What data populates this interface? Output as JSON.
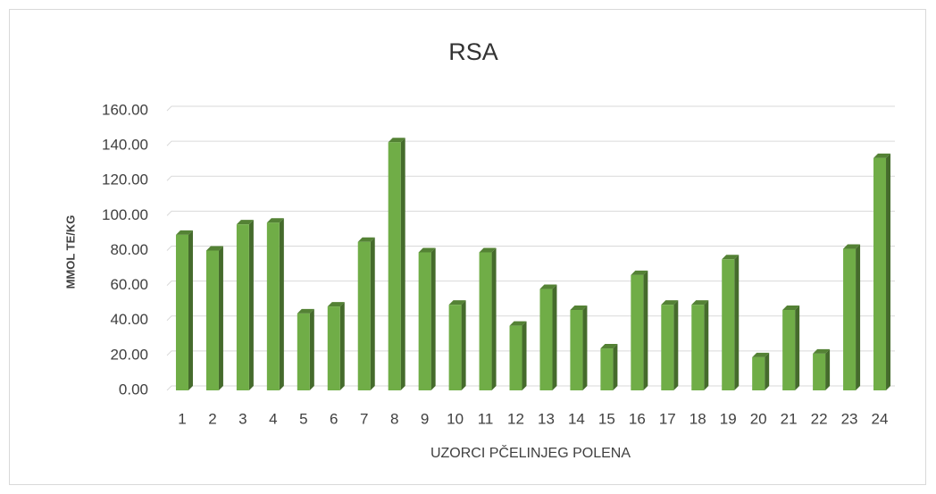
{
  "chart_data": {
    "type": "bar",
    "title": "RSA",
    "y_label": "MMOL TE/KG",
    "x_label": "UZORCI PČELINJEG POLENA",
    "categories": [
      "1",
      "2",
      "3",
      "4",
      "5",
      "6",
      "7",
      "8",
      "9",
      "10",
      "11",
      "12",
      "13",
      "14",
      "15",
      "16",
      "17",
      "18",
      "19",
      "20",
      "21",
      "22",
      "23",
      "24"
    ],
    "values": [
      89,
      80,
      95,
      96,
      44,
      48,
      85,
      142,
      79,
      49,
      79,
      37,
      58,
      46,
      24,
      66,
      49,
      49,
      75,
      19,
      46,
      21,
      81,
      133
    ],
    "color": "#70ad47",
    "ylim": [
      0,
      160
    ],
    "yticks": [
      {
        "value": 0,
        "label": "0.00"
      },
      {
        "value": 20,
        "label": "20.00"
      },
      {
        "value": 40,
        "label": "40.00"
      },
      {
        "value": 60,
        "label": "60.00"
      },
      {
        "value": 80,
        "label": "80.00"
      },
      {
        "value": 100,
        "label": "100.00"
      },
      {
        "value": 120,
        "label": "120.00"
      },
      {
        "value": 140,
        "label": "140.00"
      },
      {
        "value": 160,
        "label": "160.00"
      }
    ],
    "grid": true
  }
}
